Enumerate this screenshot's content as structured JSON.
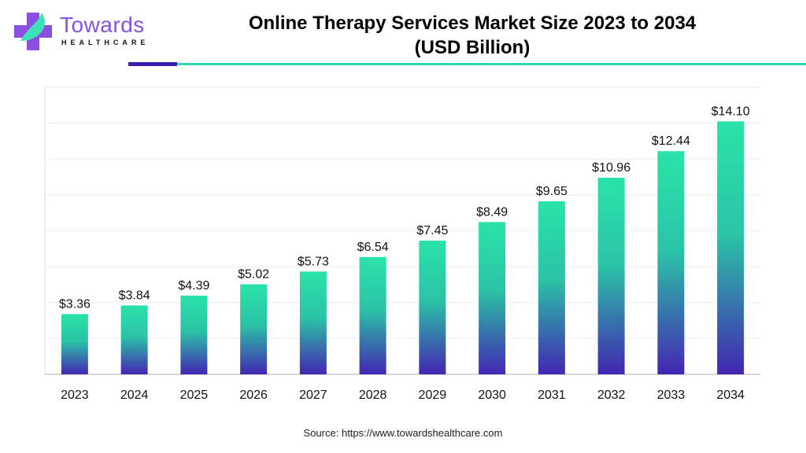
{
  "logo": {
    "word": "Towards",
    "sub": "HEALTHCARE"
  },
  "colors": {
    "bar_top": "#2ae3a9",
    "bar_bottom": "#4226b2",
    "accent_purple": "#3d1cb5",
    "accent_teal": "#2edbb0"
  },
  "source": "Source: https://www.towardshealthcare.com",
  "chart_data": {
    "type": "bar",
    "title": "Online Therapy Services Market Size 2023 to 2034",
    "subtitle": "(USD Billion)",
    "xlabel": "",
    "ylabel": "",
    "categories": [
      "2023",
      "2024",
      "2025",
      "2026",
      "2027",
      "2028",
      "2029",
      "2030",
      "2031",
      "2032",
      "2033",
      "2034"
    ],
    "values": [
      3.36,
      3.84,
      4.39,
      5.02,
      5.73,
      6.54,
      7.45,
      8.49,
      9.65,
      10.96,
      12.44,
      14.1
    ],
    "labels": [
      "$3.36",
      "$3.84",
      "$4.39",
      "$5.02",
      "$5.73",
      "$6.54",
      "$7.45",
      "$8.49",
      "$9.65",
      "$10.96",
      "$12.44",
      "$14.10"
    ],
    "ylim": [
      0,
      16
    ],
    "grid_step": 2,
    "grid": true,
    "legend": "none"
  }
}
